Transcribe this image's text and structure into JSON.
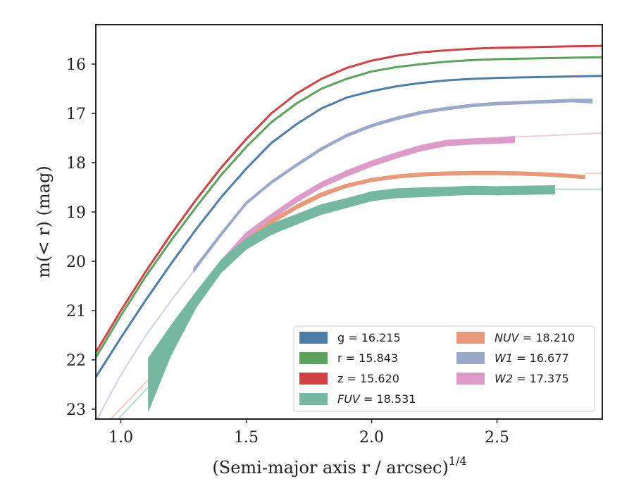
{
  "chart_data": {
    "type": "line",
    "title": "",
    "xlabel": "(Semi-major axis r / arcsec)",
    "xlabel_exponent": "1/4",
    "ylabel": "m(< r) (mag)",
    "xlim": [
      0.9,
      2.92
    ],
    "ylim": [
      23.2,
      15.2
    ],
    "y_inverted": true,
    "grid": false,
    "legend_placement": "lower-right",
    "xticks": [
      "1.0",
      "1.5",
      "2.0",
      "2.5"
    ],
    "xtick_values": [
      1.0,
      1.5,
      2.0,
      2.5
    ],
    "yticks": [
      "16",
      "17",
      "18",
      "19",
      "20",
      "21",
      "22",
      "23"
    ],
    "ytick_values": [
      16,
      17,
      18,
      19,
      20,
      21,
      22,
      23
    ],
    "series": [
      {
        "name": "g = 16.215",
        "band": "g",
        "value": "16.215",
        "color": "#4c7dac",
        "points": [
          [
            0.9,
            22.35
          ],
          [
            1.0,
            21.55
          ],
          [
            1.1,
            20.78
          ],
          [
            1.2,
            20.05
          ],
          [
            1.3,
            19.35
          ],
          [
            1.4,
            18.7
          ],
          [
            1.5,
            18.12
          ],
          [
            1.6,
            17.6
          ],
          [
            1.7,
            17.22
          ],
          [
            1.8,
            16.9
          ],
          [
            1.9,
            16.68
          ],
          [
            2.0,
            16.55
          ],
          [
            2.1,
            16.45
          ],
          [
            2.2,
            16.38
          ],
          [
            2.3,
            16.33
          ],
          [
            2.4,
            16.3
          ],
          [
            2.5,
            16.28
          ],
          [
            2.6,
            16.27
          ],
          [
            2.7,
            16.26
          ],
          [
            2.8,
            16.25
          ],
          [
            2.92,
            16.24
          ]
        ],
        "widths": [
          3,
          3,
          3,
          3,
          3,
          3,
          3,
          3,
          3,
          3,
          3,
          3,
          3,
          3,
          3,
          3,
          3,
          3,
          3,
          3,
          3
        ],
        "ext": []
      },
      {
        "name": "r = 15.843",
        "band": "r",
        "value": "15.843",
        "color": "#5ba35b",
        "points": [
          [
            0.9,
            21.95
          ],
          [
            1.0,
            21.1
          ],
          [
            1.1,
            20.3
          ],
          [
            1.2,
            19.58
          ],
          [
            1.3,
            18.9
          ],
          [
            1.4,
            18.25
          ],
          [
            1.5,
            17.68
          ],
          [
            1.6,
            17.18
          ],
          [
            1.7,
            16.8
          ],
          [
            1.8,
            16.5
          ],
          [
            1.9,
            16.3
          ],
          [
            2.0,
            16.15
          ],
          [
            2.1,
            16.06
          ],
          [
            2.2,
            16.0
          ],
          [
            2.3,
            15.95
          ],
          [
            2.4,
            15.92
          ],
          [
            2.5,
            15.9
          ],
          [
            2.6,
            15.89
          ],
          [
            2.7,
            15.88
          ],
          [
            2.8,
            15.87
          ],
          [
            2.92,
            15.86
          ]
        ],
        "widths": [
          3,
          3,
          3,
          3,
          3,
          3,
          3,
          3,
          3,
          3,
          3,
          3,
          3,
          3,
          3,
          3,
          3,
          3,
          3,
          3,
          3
        ],
        "ext": []
      },
      {
        "name": "z = 15.620",
        "band": "z",
        "value": "15.620",
        "color": "#d04244",
        "points": [
          [
            0.9,
            21.85
          ],
          [
            1.0,
            21.0
          ],
          [
            1.1,
            20.2
          ],
          [
            1.2,
            19.45
          ],
          [
            1.3,
            18.75
          ],
          [
            1.4,
            18.1
          ],
          [
            1.5,
            17.52
          ],
          [
            1.6,
            17.0
          ],
          [
            1.7,
            16.6
          ],
          [
            1.8,
            16.3
          ],
          [
            1.9,
            16.08
          ],
          [
            2.0,
            15.93
          ],
          [
            2.1,
            15.83
          ],
          [
            2.2,
            15.76
          ],
          [
            2.3,
            15.72
          ],
          [
            2.4,
            15.69
          ],
          [
            2.5,
            15.67
          ],
          [
            2.6,
            15.66
          ],
          [
            2.7,
            15.65
          ],
          [
            2.8,
            15.64
          ],
          [
            2.92,
            15.63
          ]
        ],
        "widths": [
          3,
          3,
          3,
          3,
          3,
          3,
          3,
          3,
          3,
          3,
          3,
          3,
          3,
          3,
          3,
          3,
          3,
          3,
          3,
          3,
          3
        ],
        "ext": []
      },
      {
        "name": "FUV = 18.531",
        "band": "FUV",
        "value": "18.531",
        "color": "#74b8a2",
        "points": [
          [
            1.11,
            22.5
          ],
          [
            1.2,
            21.6
          ],
          [
            1.3,
            20.78
          ],
          [
            1.4,
            20.1
          ],
          [
            1.5,
            19.65
          ],
          [
            1.6,
            19.35
          ],
          [
            1.7,
            19.15
          ],
          [
            1.8,
            18.95
          ],
          [
            1.9,
            18.82
          ],
          [
            2.0,
            18.68
          ],
          [
            2.1,
            18.62
          ],
          [
            2.2,
            18.6
          ],
          [
            2.3,
            18.58
          ],
          [
            2.4,
            18.56
          ],
          [
            2.5,
            18.57
          ],
          [
            2.6,
            18.56
          ],
          [
            2.73,
            18.55
          ]
        ],
        "widths": [
          75,
          42,
          22,
          18,
          15,
          15,
          14,
          14,
          13,
          13,
          13,
          13,
          12,
          12,
          12,
          12,
          12
        ],
        "ext": [
          [
            [
              0.98,
              23.25
            ],
            [
              1.11,
              22.55
            ]
          ],
          [
            [
              2.73,
              18.54
            ],
            [
              2.92,
              18.54
            ]
          ]
        ]
      },
      {
        "name": "NUV = 18.210",
        "band": "NUV",
        "value": "18.210",
        "color": "#e89a78",
        "points": [
          [
            1.11,
            22.35
          ],
          [
            1.2,
            21.6
          ],
          [
            1.3,
            20.85
          ],
          [
            1.4,
            20.15
          ],
          [
            1.5,
            19.6
          ],
          [
            1.6,
            19.2
          ],
          [
            1.7,
            18.9
          ],
          [
            1.8,
            18.65
          ],
          [
            1.9,
            18.47
          ],
          [
            2.0,
            18.35
          ],
          [
            2.1,
            18.28
          ],
          [
            2.2,
            18.24
          ],
          [
            2.3,
            18.22
          ],
          [
            2.4,
            18.21
          ],
          [
            2.5,
            18.21
          ],
          [
            2.6,
            18.22
          ],
          [
            2.7,
            18.24
          ],
          [
            2.85,
            18.29
          ]
        ],
        "widths": [
          20,
          11,
          9,
          8,
          7,
          6,
          6,
          6,
          5,
          5,
          5,
          5,
          5,
          5,
          5,
          5,
          5,
          5
        ],
        "ext": [
          [
            [
              0.95,
              23.25
            ],
            [
              1.11,
              22.4
            ]
          ],
          [
            [
              2.85,
              18.22
            ],
            [
              2.92,
              18.22
            ]
          ]
        ]
      },
      {
        "name": "W1 = 16.677",
        "band": "W1",
        "value": "16.677",
        "color": "#9aa8c9",
        "points": [
          [
            1.29,
            20.18
          ],
          [
            1.4,
            19.45
          ],
          [
            1.5,
            18.82
          ],
          [
            1.6,
            18.4
          ],
          [
            1.7,
            18.05
          ],
          [
            1.8,
            17.72
          ],
          [
            1.9,
            17.45
          ],
          [
            2.0,
            17.25
          ],
          [
            2.1,
            17.1
          ],
          [
            2.2,
            16.98
          ],
          [
            2.3,
            16.9
          ],
          [
            2.4,
            16.84
          ],
          [
            2.5,
            16.8
          ],
          [
            2.6,
            16.78
          ],
          [
            2.7,
            16.76
          ],
          [
            2.8,
            16.74
          ],
          [
            2.88,
            16.75
          ]
        ],
        "widths": [
          6,
          5,
          4,
          4,
          4,
          4,
          4,
          4,
          4,
          4,
          4,
          4,
          4,
          4,
          4,
          4,
          6
        ],
        "ext": [
          [
            [
              0.9,
              23.25
            ],
            [
              1.0,
              22.3
            ],
            [
              1.1,
              21.5
            ],
            [
              1.2,
              20.8
            ],
            [
              1.29,
              20.2
            ]
          ]
        ]
      },
      {
        "name": "W2 = 17.375",
        "band": "W2",
        "value": "17.375",
        "color": "#dc9bc8",
        "points": [
          [
            1.29,
            20.85
          ],
          [
            1.4,
            20.05
          ],
          [
            1.5,
            19.48
          ],
          [
            1.6,
            19.1
          ],
          [
            1.7,
            18.75
          ],
          [
            1.8,
            18.45
          ],
          [
            1.9,
            18.22
          ],
          [
            2.0,
            18.02
          ],
          [
            2.1,
            17.85
          ],
          [
            2.2,
            17.7
          ],
          [
            2.3,
            17.6
          ],
          [
            2.4,
            17.57
          ],
          [
            2.5,
            17.55
          ],
          [
            2.57,
            17.53
          ]
        ],
        "widths": [
          14,
          10,
          9,
          8,
          8,
          8,
          8,
          8,
          8,
          8,
          8,
          8,
          8,
          9
        ],
        "ext": [
          [
            [
              2.57,
              17.48
            ],
            [
              2.7,
              17.45
            ],
            [
              2.92,
              17.4
            ]
          ]
        ]
      }
    ]
  },
  "legend": {
    "columns": [
      [
        "g",
        "r",
        "z",
        "FUV"
      ],
      [
        "NUV",
        "W1",
        "W2"
      ]
    ]
  }
}
